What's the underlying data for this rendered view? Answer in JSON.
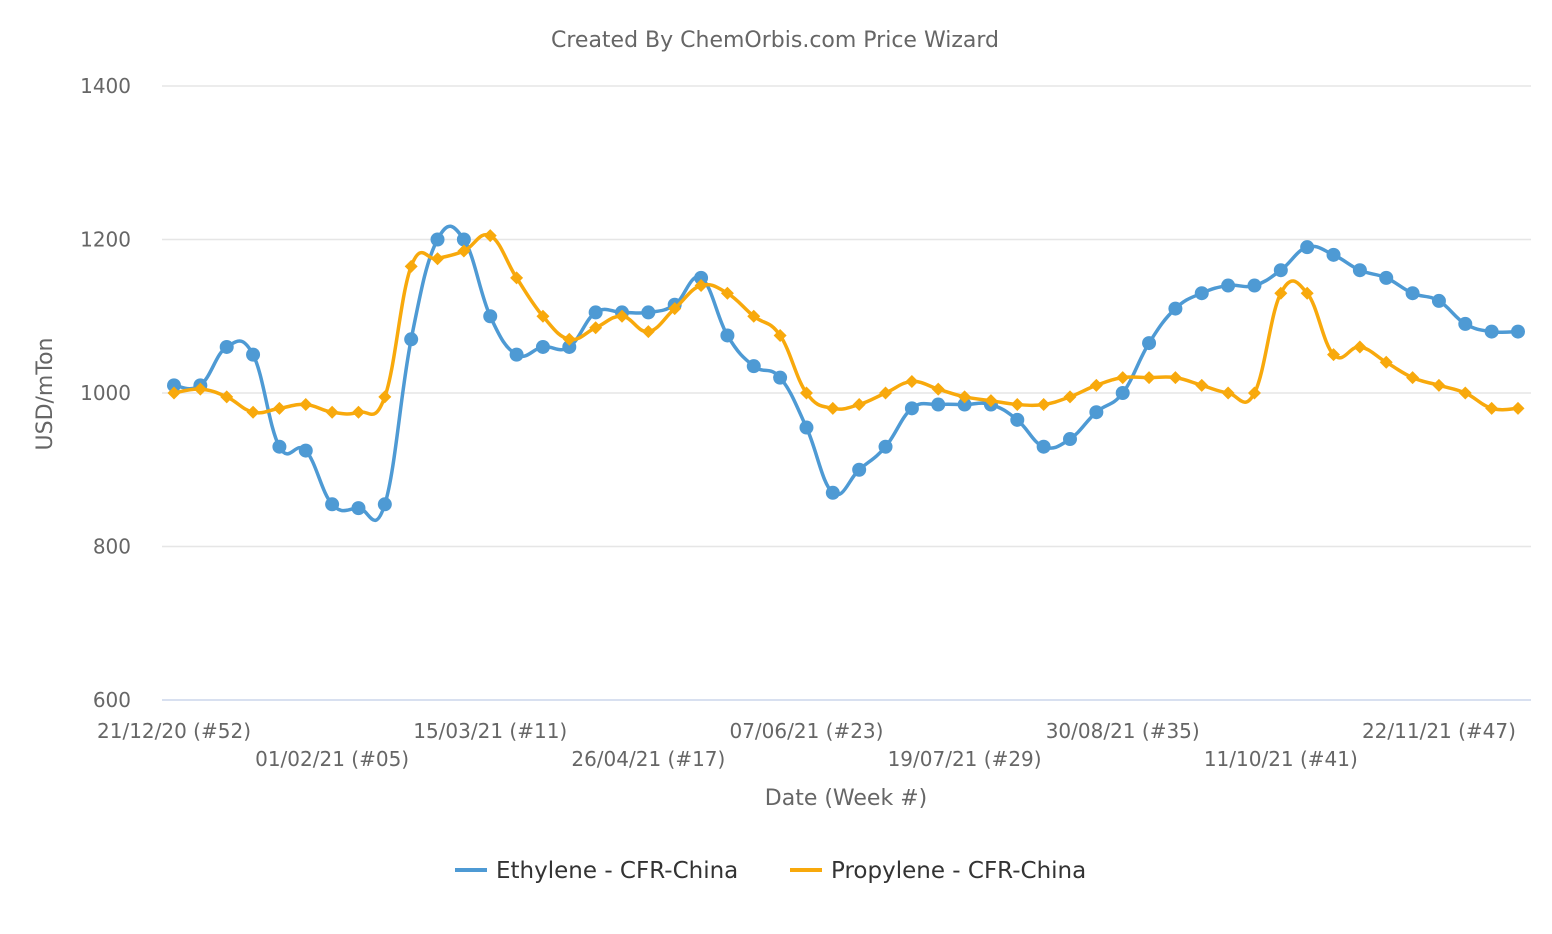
{
  "chart_data": {
    "type": "line",
    "title": "Created By ChemOrbis.com Price Wizard",
    "xlabel": "Date (Week #)",
    "ylabel": "USD/mTon",
    "ylim": [
      600,
      1400
    ],
    "yticks": [
      600,
      800,
      1000,
      1200,
      1400
    ],
    "grid": true,
    "legend_placement": "bottom",
    "categories": [
      "21/12/20",
      "28/12/20",
      "04/01/21",
      "11/01/21",
      "18/01/21",
      "25/01/21",
      "01/02/21",
      "08/02/21",
      "15/02/21",
      "22/02/21",
      "01/03/21",
      "08/03/21",
      "15/03/21",
      "22/03/21",
      "29/03/21",
      "05/04/21",
      "12/04/21",
      "19/04/21",
      "26/04/21",
      "03/05/21",
      "10/05/21",
      "17/05/21",
      "24/05/21",
      "31/05/21",
      "07/06/21",
      "14/06/21",
      "21/06/21",
      "28/06/21",
      "05/07/21",
      "12/07/21",
      "19/07/21",
      "26/07/21",
      "02/08/21",
      "09/08/21",
      "16/08/21",
      "23/08/21",
      "30/08/21",
      "06/09/21",
      "13/09/21",
      "20/09/21",
      "27/09/21",
      "04/10/21",
      "11/10/21",
      "18/10/21",
      "25/10/21",
      "01/11/21",
      "08/11/21",
      "15/11/21",
      "22/11/21",
      "29/11/21",
      "06/12/21",
      "13/12/21"
    ],
    "x_tick_labels": [
      {
        "index": 0,
        "label": "21/12/20 (#52)"
      },
      {
        "index": 6,
        "label": "01/02/21 (#05)"
      },
      {
        "index": 12,
        "label": "15/03/21 (#11)"
      },
      {
        "index": 18,
        "label": "26/04/21 (#17)"
      },
      {
        "index": 24,
        "label": "07/06/21 (#23)"
      },
      {
        "index": 30,
        "label": "19/07/21 (#29)"
      },
      {
        "index": 36,
        "label": "30/08/21 (#35)"
      },
      {
        "index": 42,
        "label": "11/10/21 (#41)"
      },
      {
        "index": 48,
        "label": "22/11/21 (#47)"
      }
    ],
    "series": [
      {
        "name": "Ethylene - CFR-China",
        "color": "#4e9ad4",
        "marker": "circle",
        "values": [
          1010,
          1010,
          1060,
          1050,
          930,
          925,
          855,
          850,
          855,
          1070,
          1200,
          1200,
          1100,
          1050,
          1060,
          1060,
          1105,
          1105,
          1105,
          1115,
          1150,
          1075,
          1035,
          1020,
          955,
          870,
          900,
          930,
          980,
          985,
          985,
          985,
          965,
          930,
          940,
          975,
          1000,
          1065,
          1110,
          1130,
          1140,
          1140,
          1160,
          1190,
          1180,
          1160,
          1150,
          1130,
          1120,
          1090,
          1080,
          1080
        ]
      },
      {
        "name": "Propylene - CFR-China",
        "color": "#f8a90c",
        "marker": "diamond",
        "values": [
          1000,
          1005,
          995,
          975,
          980,
          985,
          975,
          975,
          995,
          1165,
          1175,
          1185,
          1205,
          1150,
          1100,
          1070,
          1085,
          1100,
          1080,
          1110,
          1140,
          1130,
          1100,
          1075,
          1000,
          980,
          985,
          1000,
          1015,
          1005,
          995,
          990,
          985,
          985,
          995,
          1010,
          1020,
          1020,
          1020,
          1010,
          1000,
          1000,
          1130,
          1130,
          1050,
          1060,
          1040,
          1020,
          1010,
          1000,
          980,
          980
        ]
      }
    ]
  }
}
